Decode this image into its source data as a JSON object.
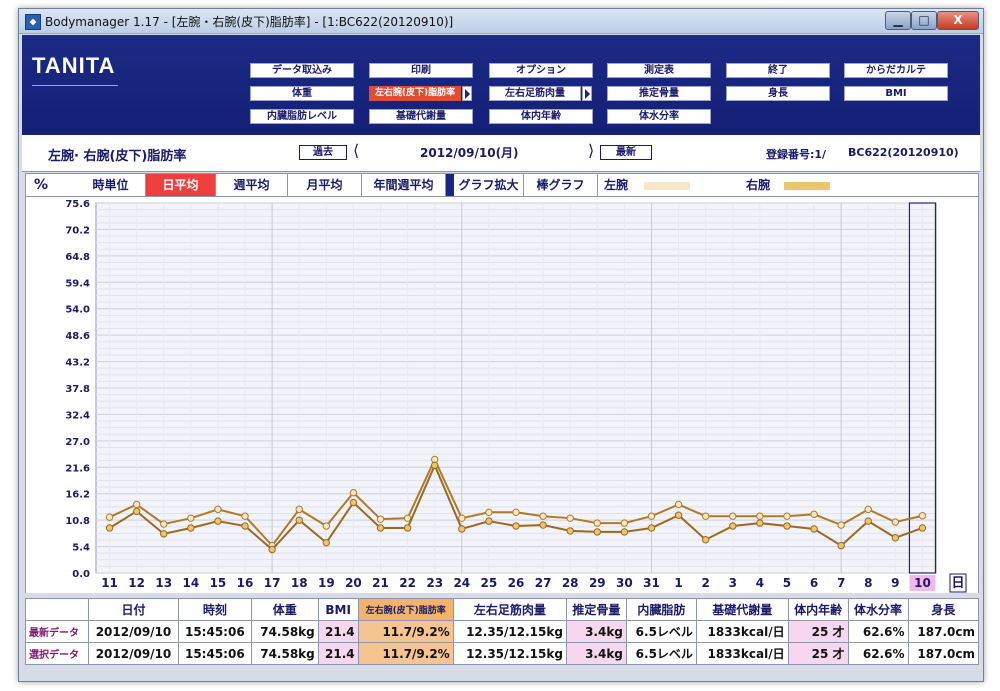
{
  "window": {
    "title": "Bodymanager 1.17 - [左腕・右腕(皮下)脂肪率] - [1:BC622(20120910)]",
    "min_glyph": "▁",
    "max_glyph": "□",
    "close_glyph": "X"
  },
  "logo": {
    "text": "TANITA"
  },
  "toolbar": {
    "data_import": "データ取込み",
    "print": "印刷",
    "options": "オプション",
    "measurement_table": "測定表",
    "exit": "終了",
    "body_chart": "からだカルテ",
    "weight": "体重",
    "arm_fat": "左右腕(皮下)脂肪率",
    "leg_muscle": "左右足筋肉量",
    "bone_mass": "推定骨量",
    "height": "身長",
    "bmi": "BMI",
    "visceral_fat": "内臓脂肪レベル",
    "bmr": "基礎代謝量",
    "body_age": "体内年齢",
    "water": "体水分率"
  },
  "info": {
    "section_title": "左腕· 右腕(皮下)脂肪率",
    "prev_label": "過去",
    "date": "2012/09/10(月)",
    "latest_label": "最新",
    "reg_label": "登録番号:1/",
    "reg_id": "BC622(20120910)"
  },
  "tabs": {
    "unit": "%",
    "hourly": "時単位",
    "daily": "日平均",
    "weekly": "週平均",
    "monthly": "月平均",
    "yearly": "年間週平均",
    "zoom": "グラフ拡大",
    "bar": "棒グラフ",
    "left_arm": "左腕",
    "right_arm": "右腕"
  },
  "colors": {
    "left_arm": "#f8e6c8",
    "right_arm": "#ecc56f",
    "line_left": "#b07a2a",
    "line_right": "#9a6a22",
    "header_bg": "#1b2a86",
    "active_tab": "#ee3e3e",
    "grid": "#e2e2ec"
  },
  "chart_data": {
    "type": "line",
    "x": [
      "11",
      "12",
      "13",
      "14",
      "15",
      "16",
      "17",
      "18",
      "19",
      "20",
      "21",
      "22",
      "23",
      "24",
      "25",
      "26",
      "27",
      "28",
      "29",
      "30",
      "31",
      "1",
      "2",
      "3",
      "4",
      "5",
      "6",
      "7",
      "8",
      "9",
      "10"
    ],
    "x_unit": "日",
    "y_ticks": [
      "75.6",
      "70.2",
      "64.8",
      "59.4",
      "54.0",
      "48.6",
      "43.2",
      "37.8",
      "32.4",
      "27.0",
      "21.6",
      "16.2",
      "10.8",
      "5.4",
      "0.0"
    ],
    "ylim": [
      0,
      75.6
    ],
    "series": [
      {
        "name": "左腕",
        "values": [
          11.4,
          14.0,
          10.0,
          11.2,
          13.0,
          11.6,
          5.6,
          13.0,
          9.6,
          16.4,
          11.0,
          11.2,
          23.2,
          11.2,
          12.4,
          12.4,
          11.6,
          11.2,
          10.2,
          10.2,
          11.6,
          14.0,
          11.6,
          11.6,
          11.6,
          11.6,
          12.0,
          9.8,
          13.0,
          10.4,
          11.7
        ]
      },
      {
        "name": "右腕",
        "values": [
          9.2,
          12.6,
          8.0,
          9.2,
          10.6,
          9.6,
          4.8,
          10.8,
          6.2,
          14.4,
          9.2,
          9.2,
          22.0,
          9.0,
          10.6,
          9.6,
          9.8,
          8.6,
          8.4,
          8.4,
          9.2,
          11.8,
          6.8,
          9.6,
          10.2,
          9.6,
          9.0,
          5.6,
          10.6,
          7.2,
          9.2
        ]
      }
    ]
  },
  "table": {
    "headers": [
      "日付",
      "時刻",
      "体重",
      "BMI",
      "左右腕(皮下)脂肪率",
      "左右足筋肉量",
      "推定骨量",
      "内臓脂肪",
      "基礎代謝量",
      "体内年齢",
      "体水分率",
      "身長"
    ],
    "rows": [
      {
        "label": "最新データ",
        "values": [
          "2012/09/10",
          "15:45:06",
          "74.58kg",
          "21.4",
          "11.7/9.2%",
          "12.35/12.15kg",
          "3.4kg",
          "6.5レベル",
          "1833kcal/日",
          "25 才",
          "62.6%",
          "187.0cm"
        ]
      },
      {
        "label": "選択データ",
        "values": [
          "2012/09/10",
          "15:45:06",
          "74.58kg",
          "21.4",
          "11.7/9.2%",
          "12.35/12.15kg",
          "3.4kg",
          "6.5レベル",
          "1833kcal/日",
          "25 才",
          "62.6%",
          "187.0cm"
        ]
      }
    ]
  }
}
